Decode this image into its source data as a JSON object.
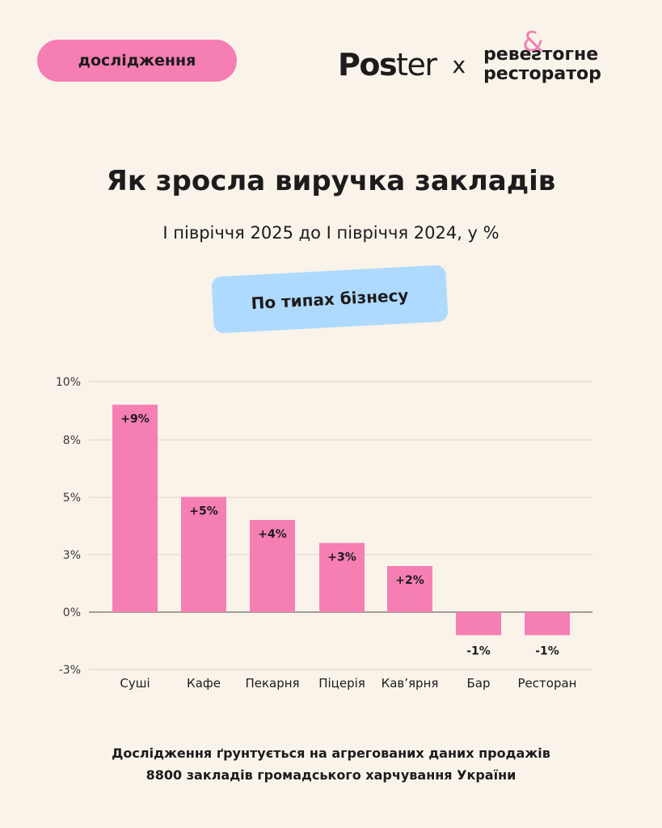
{
  "tag": "дослідження",
  "logo": {
    "poster_bold": "Pos",
    "poster_light": "ter",
    "separator": "x",
    "partner_line1": "ревеƨтогне",
    "partner_line2": "ресторатор",
    "partner_amp": "&"
  },
  "title": "Як зросла виручка закладів",
  "subtitle": "І півріччя 2025 до І півріччя 2024, у %",
  "filter": "По типах бізнесу",
  "colors": {
    "accent": "#f57fb3",
    "filter": "#aedaff",
    "background": "#faf3ea"
  },
  "chart_data": {
    "type": "bar",
    "categories": [
      "Суші",
      "Кафе",
      "Пекарня",
      "Піцерія",
      "Кав’ярня",
      "Бар",
      "Ресторан"
    ],
    "values": [
      9,
      5,
      4,
      3,
      2,
      -1,
      -1
    ],
    "data_labels": [
      "+9%",
      "+5%",
      "+4%",
      "+3%",
      "+2%",
      "-1%",
      "-1%"
    ],
    "yticks": [
      "10%",
      "8%",
      "5%",
      "3%",
      "0%",
      "-3%"
    ],
    "ylim": [
      -3,
      10
    ],
    "grid": true,
    "color": "#f57fb3"
  },
  "footer": {
    "line1": "Дослідження ґрунтується на агрегованих даних продажів",
    "line2": "8800 закладів громадського харчування України"
  }
}
